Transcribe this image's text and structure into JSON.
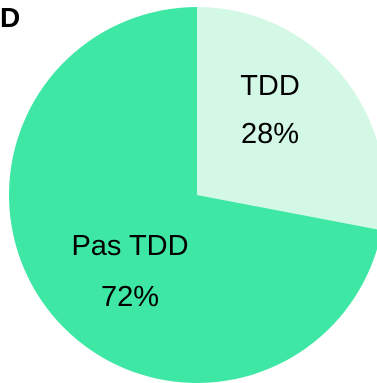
{
  "panel_label": "D",
  "chart_data": {
    "type": "pie",
    "title": "",
    "slices": [
      {
        "label": "TDD",
        "value": 28,
        "value_text": "28%",
        "color": "#d4f8e6"
      },
      {
        "label": "Pas TDD",
        "value": 72,
        "value_text": "72%",
        "color": "#3ee8a4"
      }
    ],
    "start_angle": "12 o'clock",
    "direction": "clockwise",
    "legend": "none (labels inside slices)"
  }
}
